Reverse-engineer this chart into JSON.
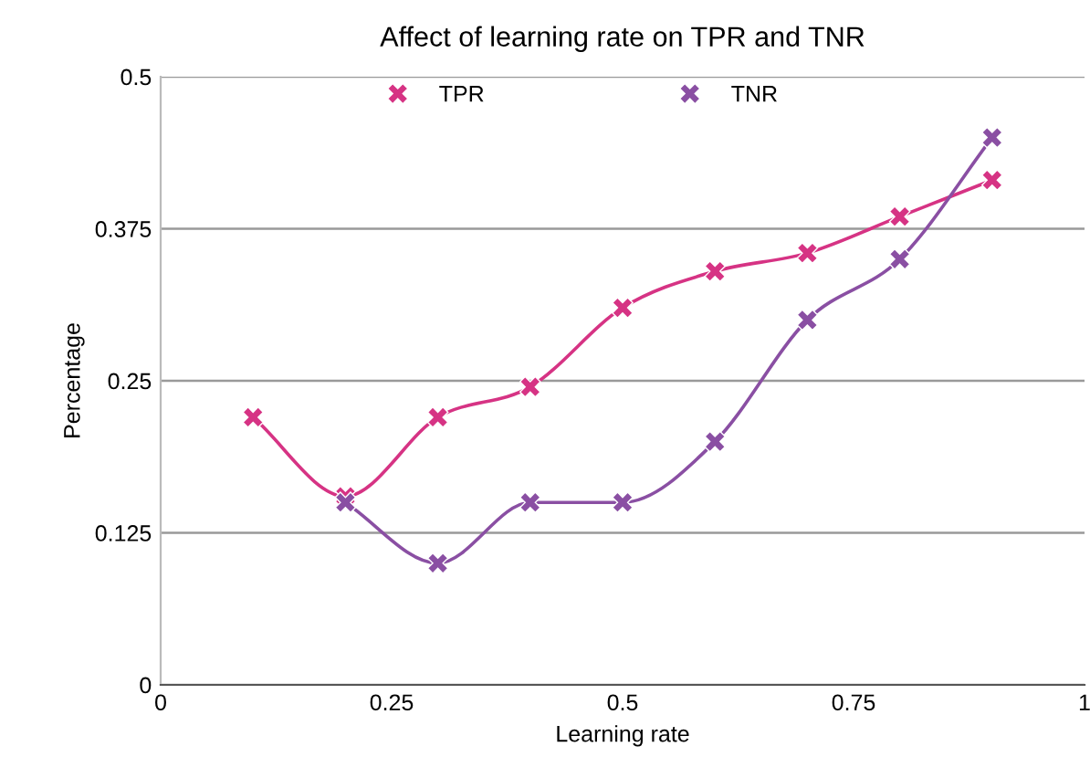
{
  "chart_data": {
    "type": "line",
    "title": "Affect of learning rate on TPR and TNR",
    "xlabel": "Learning rate",
    "ylabel": "Percentage",
    "series": [
      {
        "name": "TPR",
        "color": "#d63384",
        "x": [
          0.1,
          0.2,
          0.3,
          0.4,
          0.5,
          0.6,
          0.7,
          0.8,
          0.9
        ],
        "values": [
          0.22,
          0.155,
          0.22,
          0.245,
          0.31,
          0.34,
          0.355,
          0.385,
          0.415
        ]
      },
      {
        "name": "TNR",
        "color": "#8a4fa3",
        "x": [
          0.2,
          0.3,
          0.4,
          0.5,
          0.6,
          0.7,
          0.8,
          0.9
        ],
        "values": [
          0.15,
          0.1,
          0.15,
          0.15,
          0.2,
          0.3,
          0.35,
          0.45
        ]
      }
    ],
    "xlim": [
      0,
      1
    ],
    "xticks": [
      0,
      0.25,
      0.5,
      0.75,
      1
    ],
    "ylim": [
      0,
      0.5
    ],
    "yticks": [
      0,
      0.125,
      0.25,
      0.375,
      0.5
    ],
    "grid": "y",
    "legend": "top",
    "marker": "cross",
    "line_style": "solid"
  }
}
